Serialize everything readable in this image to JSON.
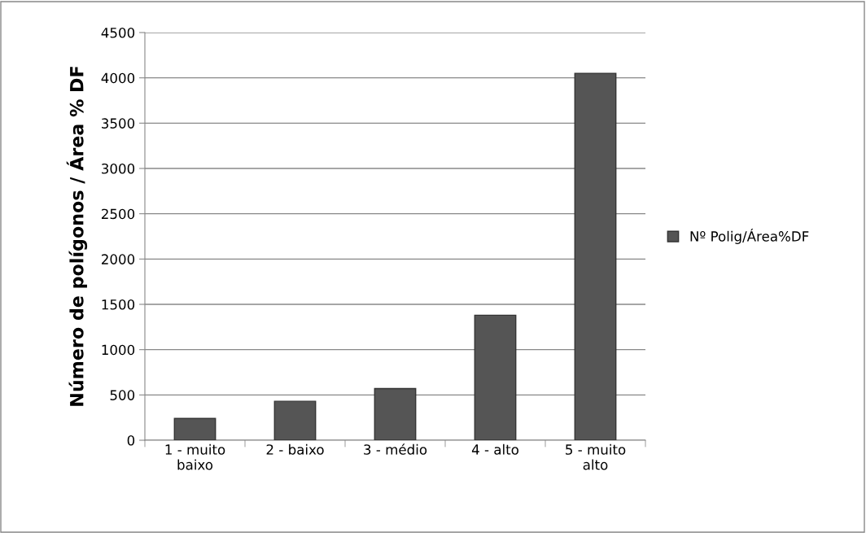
{
  "chart_data": {
    "type": "bar",
    "ylabel": "Número de polígonos / Área % DF",
    "categories": [
      "1 - muito\nbaixo",
      "2 - baixo",
      "3 - médio",
      "4 - alto",
      "5 - muito\nalto"
    ],
    "series": [
      {
        "name": "Nº Polig/Área%DF",
        "color": "#555555",
        "values": [
          240,
          430,
          570,
          1380,
          4050
        ]
      }
    ],
    "ylim": [
      0,
      4500
    ],
    "yticks": [
      0,
      500,
      1000,
      1500,
      2000,
      2500,
      3000,
      3500,
      4000,
      4500
    ],
    "grid": "y",
    "legend": "right"
  }
}
